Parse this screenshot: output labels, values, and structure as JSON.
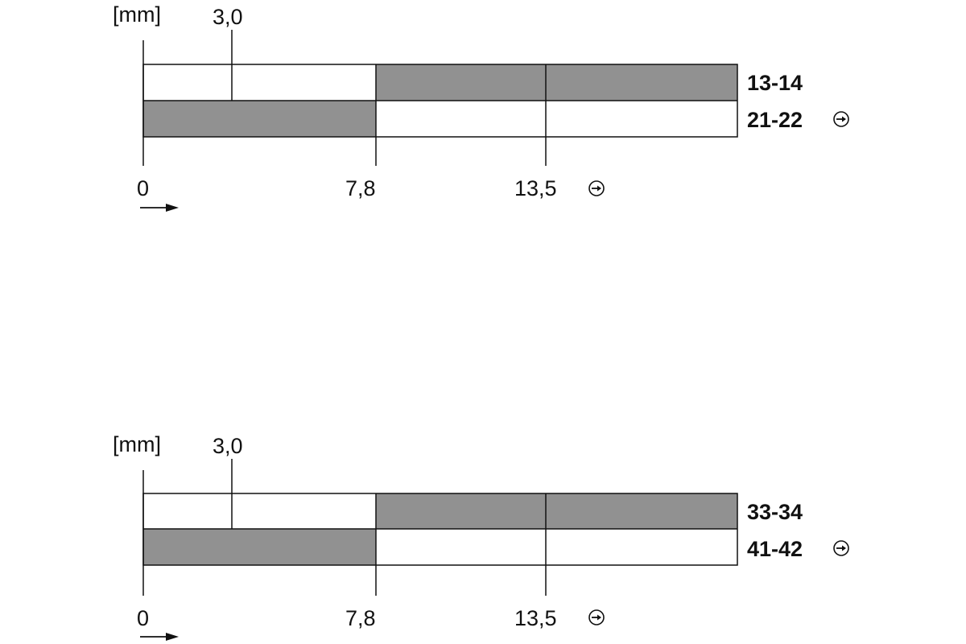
{
  "colors": {
    "filled": "#919191",
    "empty": "#ffffff",
    "line": "#111111"
  },
  "diagrams": [
    {
      "unit": "[mm]",
      "top_marker": "3,0",
      "axis_labels": [
        "0",
        "7,8",
        "13,5"
      ],
      "direction_icon": "arrow-right-icon",
      "forced_opening_icon": "positive-opening-icon",
      "contacts": [
        {
          "label": "13-14",
          "closed_from": 7.8,
          "forced": false
        },
        {
          "label": "21-22",
          "closed_until": 7.8,
          "forced": true
        }
      ]
    },
    {
      "unit": "[mm]",
      "top_marker": "3,0",
      "axis_labels": [
        "0",
        "7,8",
        "13,5"
      ],
      "direction_icon": "arrow-right-icon",
      "forced_opening_icon": "positive-opening-icon",
      "contacts": [
        {
          "label": "33-34",
          "closed_from": 7.8,
          "forced": false
        },
        {
          "label": "41-42",
          "closed_until": 7.8,
          "forced": true
        }
      ]
    }
  ]
}
